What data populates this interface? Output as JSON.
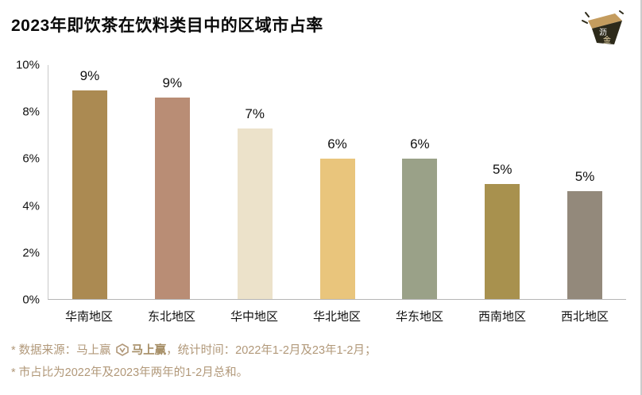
{
  "header": {
    "title": "2023年即饮茶在饮料类目中的区域市占率",
    "logo": {
      "char1": "沥",
      "char2": "金"
    }
  },
  "chart_data": {
    "type": "bar",
    "title": "2023年即饮茶在饮料类目中的区域市占率",
    "categories": [
      "华南地区",
      "东北地区",
      "华中地区",
      "华北地区",
      "华东地区",
      "西南地区",
      "西北地区"
    ],
    "values": [
      8.9,
      8.6,
      7.3,
      6.0,
      6.0,
      4.9,
      4.6
    ],
    "value_labels": [
      "9%",
      "9%",
      "7%",
      "6%",
      "6%",
      "5%",
      "5%"
    ],
    "colors": [
      "#ab8a52",
      "#b98d75",
      "#ece2ca",
      "#e9c57c",
      "#9aa188",
      "#a8914e",
      "#93897b"
    ],
    "yticks": [
      "10%",
      "8%",
      "6%",
      "4%",
      "2%",
      "0%"
    ],
    "ylim": [
      0,
      10
    ],
    "xlabel": "",
    "ylabel": "",
    "grid": false,
    "legend": false
  },
  "footer": {
    "note1_prefix": "* 数据来源：马上赢",
    "brand_name": "马上赢",
    "note1_suffix": "，统计时间：2022年1-2月及23年1-2月；",
    "note2": "* 市占比为2022年及2023年两年的1-2月总和。",
    "note_color": "#b19879"
  }
}
